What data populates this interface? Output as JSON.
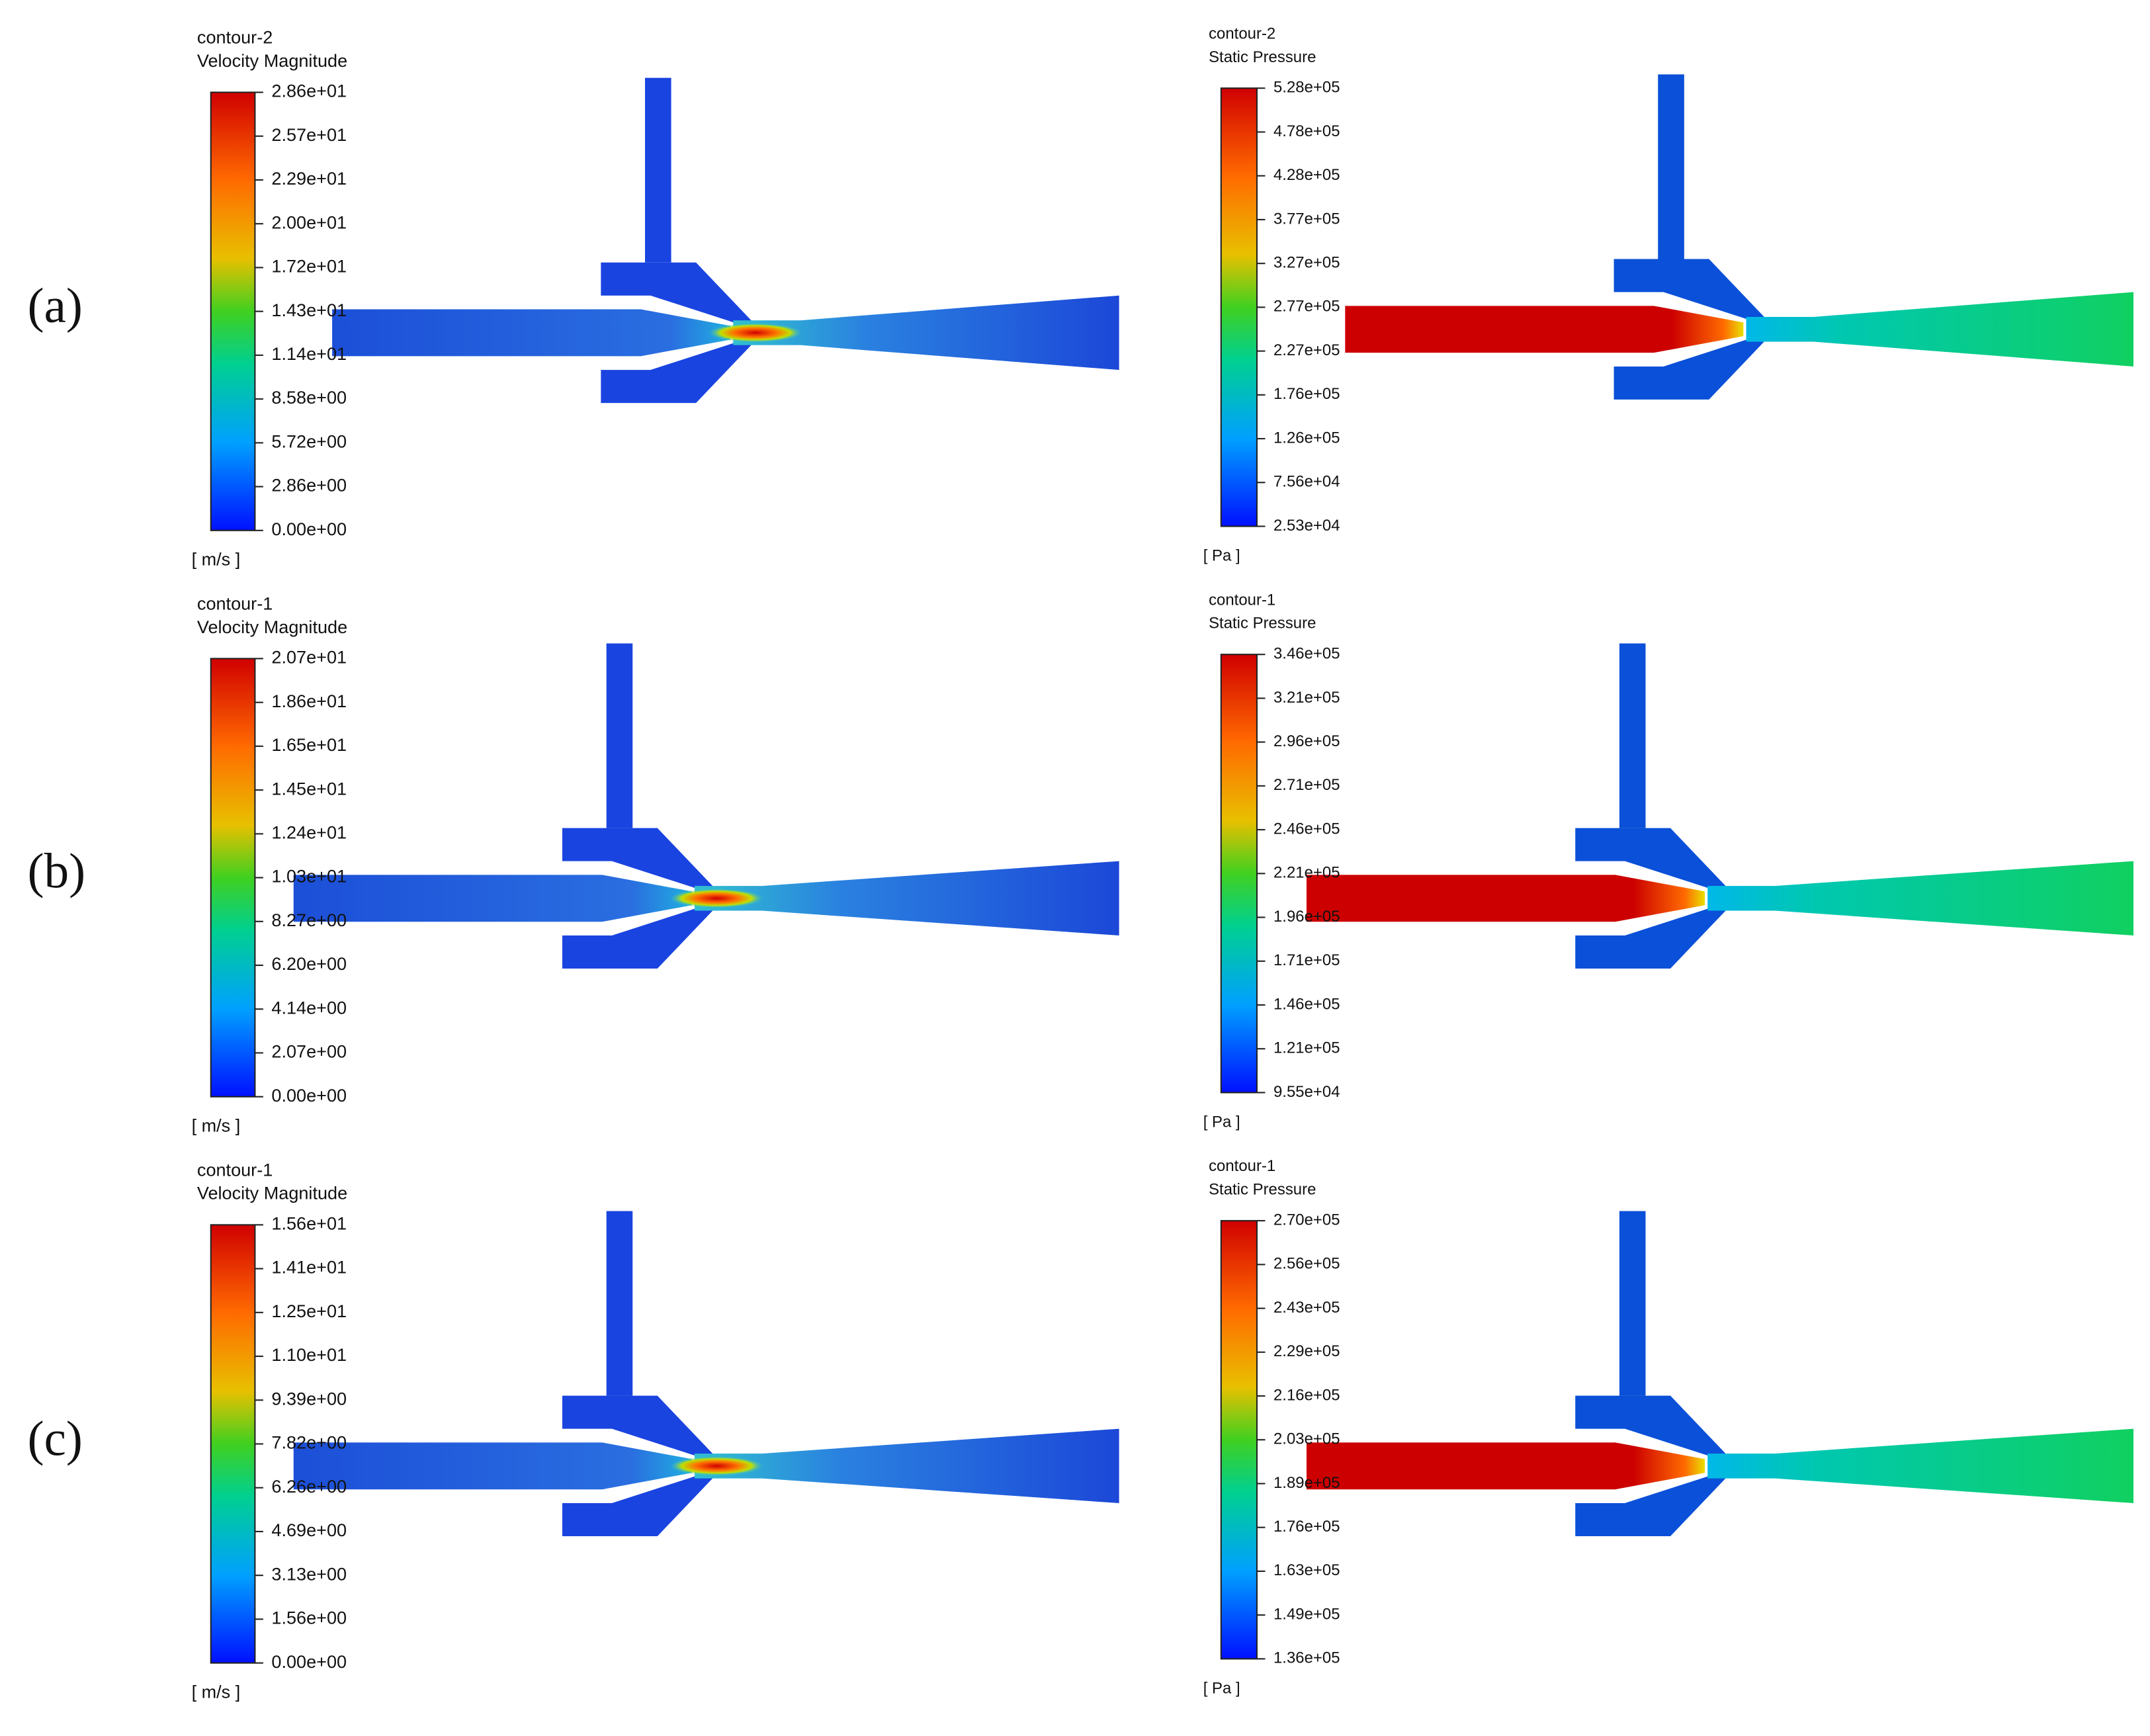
{
  "panels": [
    {
      "label": "(a)",
      "velocity": {
        "name": "contour-2",
        "quantity": "Velocity Magnitude",
        "unit": "[ m/s ]",
        "ticks": [
          "2.86e+01",
          "2.57e+01",
          "2.29e+01",
          "2.00e+01",
          "1.72e+01",
          "1.43e+01",
          "1.14e+01",
          "8.58e+00",
          "5.72e+00",
          "2.86e+00",
          "0.00e+00"
        ]
      },
      "pressure": {
        "name": "contour-2",
        "quantity": "Static Pressure",
        "unit": "[ Pa ]",
        "ticks": [
          "5.28e+05",
          "4.78e+05",
          "4.28e+05",
          "3.77e+05",
          "3.27e+05",
          "2.77e+05",
          "2.27e+05",
          "1.76e+05",
          "1.26e+05",
          "7.56e+04",
          "2.53e+04"
        ]
      }
    },
    {
      "label": "(b)",
      "velocity": {
        "name": "contour-1",
        "quantity": "Velocity Magnitude",
        "unit": "[ m/s ]",
        "ticks": [
          "2.07e+01",
          "1.86e+01",
          "1.65e+01",
          "1.45e+01",
          "1.24e+01",
          "1.03e+01",
          "8.27e+00",
          "6.20e+00",
          "4.14e+00",
          "2.07e+00",
          "0.00e+00"
        ]
      },
      "pressure": {
        "name": "contour-1",
        "quantity": "Static Pressure",
        "unit": "[ Pa ]",
        "ticks": [
          "3.46e+05",
          "3.21e+05",
          "2.96e+05",
          "2.71e+05",
          "2.46e+05",
          "2.21e+05",
          "1.96e+05",
          "1.71e+05",
          "1.46e+05",
          "1.21e+05",
          "9.55e+04"
        ]
      }
    },
    {
      "label": "(c)",
      "velocity": {
        "name": "contour-1",
        "quantity": "Velocity Magnitude",
        "unit": "[ m/s ]",
        "ticks": [
          "1.56e+01",
          "1.41e+01",
          "1.25e+01",
          "1.10e+01",
          "9.39e+00",
          "7.82e+00",
          "6.26e+00",
          "4.69e+00",
          "3.13e+00",
          "1.56e+00",
          "0.00e+00"
        ]
      },
      "pressure": {
        "name": "contour-1",
        "quantity": "Static Pressure",
        "unit": "[ Pa ]",
        "ticks": [
          "2.70e+05",
          "2.56e+05",
          "2.43e+05",
          "2.29e+05",
          "2.16e+05",
          "2.03e+05",
          "1.89e+05",
          "1.76e+05",
          "1.63e+05",
          "1.49e+05",
          "1.36e+05"
        ]
      }
    }
  ]
}
